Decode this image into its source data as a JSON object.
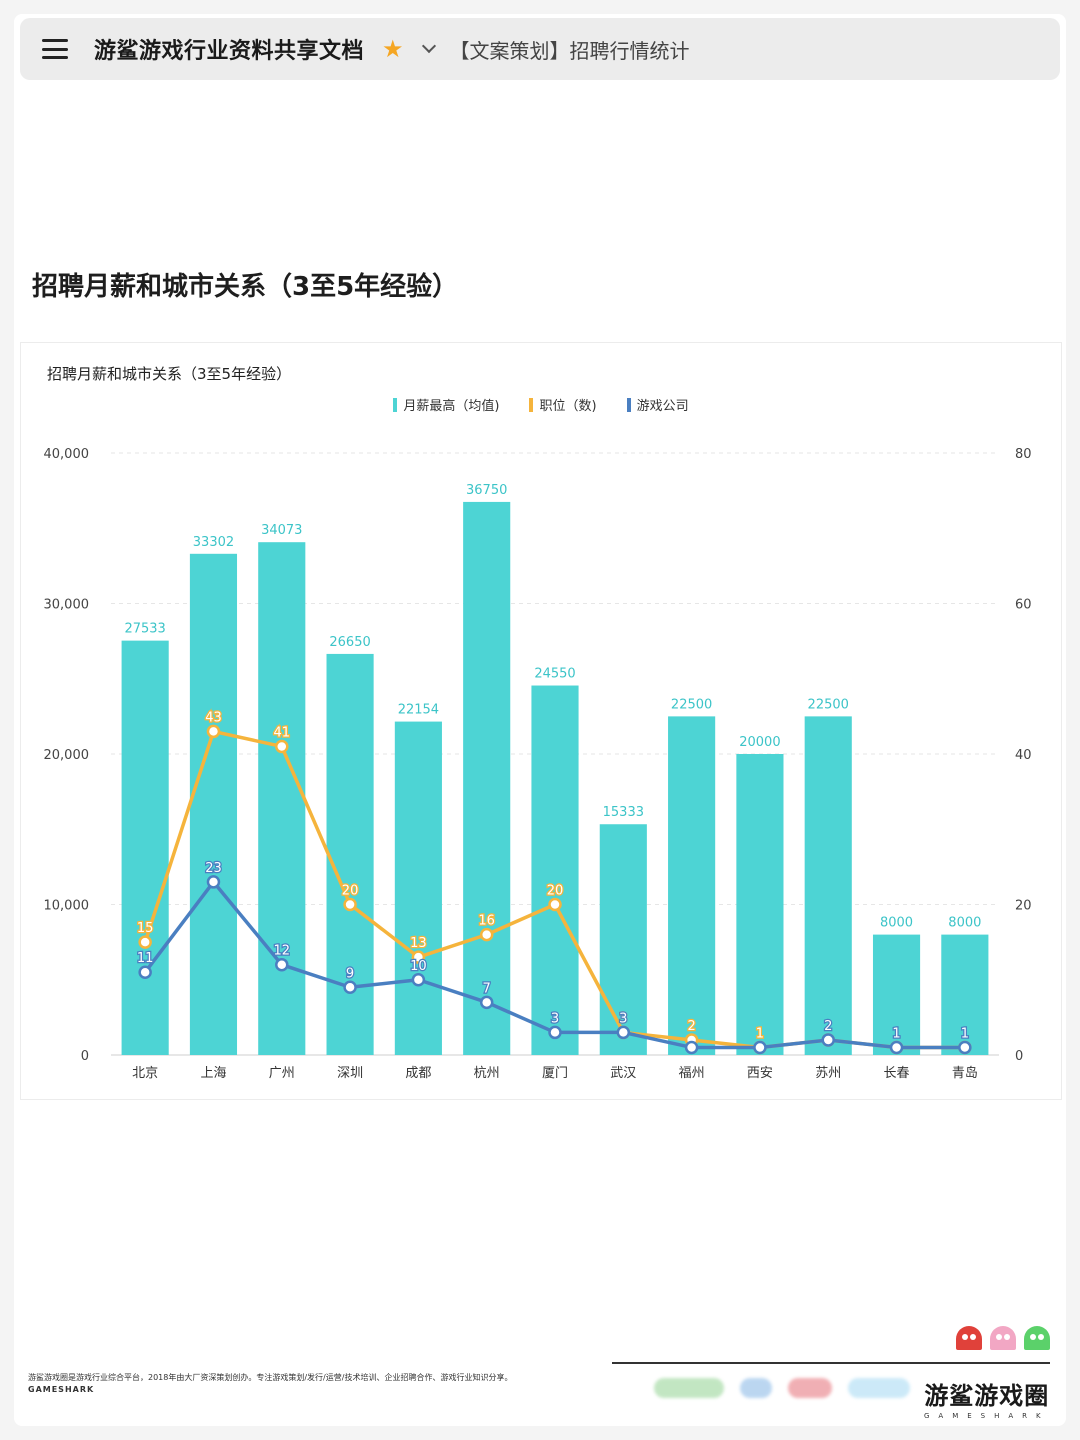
{
  "header": {
    "doc_title": "游鲨游戏行业资料共享文档",
    "sheet_tab": "【文案策划】招聘行情统计"
  },
  "section_title": "招聘月薪和城市关系（3至5年经验）",
  "colors": {
    "salary": "#4dd4d4",
    "positions": "#f5b43c",
    "companies": "#4a7fc1",
    "salary_label": "#3cc4c8"
  },
  "chart_data": {
    "type": "bar",
    "title": "招聘月薪和城市关系（3至5年经验）",
    "categories": [
      "北京",
      "上海",
      "广州",
      "深圳",
      "成都",
      "杭州",
      "厦门",
      "武汉",
      "福州",
      "西安",
      "苏州",
      "长春",
      "青岛"
    ],
    "series": [
      {
        "name": "月薪最高（均值)",
        "type": "bar",
        "axis": "left",
        "values": [
          27533,
          33302,
          34073,
          26650,
          22154,
          36750,
          24550,
          15333,
          22500,
          20000,
          22500,
          8000,
          8000
        ]
      },
      {
        "name": "职位（数)",
        "type": "line",
        "axis": "right",
        "values": [
          15,
          43,
          41,
          20,
          13,
          16,
          20,
          3,
          2,
          1,
          2,
          1,
          1
        ],
        "visible_labels": [
          "15",
          "43",
          "41",
          "20",
          "13",
          "16",
          "20",
          "3",
          "2",
          "1",
          "",
          "",
          ""
        ]
      },
      {
        "name": "游戏公司",
        "type": "line",
        "axis": "right",
        "values": [
          11,
          23,
          12,
          9,
          10,
          7,
          3,
          3,
          1,
          1,
          2,
          1,
          1
        ],
        "visible_labels": [
          "11",
          "23",
          "12",
          "9",
          "10",
          "7",
          "3",
          "3",
          "",
          "",
          "2",
          "1",
          "1"
        ]
      }
    ],
    "ylim_left": [
      0,
      40000
    ],
    "ylim_right": [
      0,
      80
    ],
    "yticks_left": [
      "0",
      "10,000",
      "20,000",
      "30,000",
      "40,000"
    ],
    "yticks_right": [
      "0",
      "20",
      "40",
      "60",
      "80"
    ],
    "grid": true,
    "legend": "top-center"
  },
  "footer": {
    "description": "游鲨游戏圈是游戏行业综合平台，2018年由大厂资深策划创办。专注游戏策划/发行/运营/技术培训、企业招聘合作、游戏行业知识分享。",
    "brand_small": "GAMESHARK",
    "brand_cn": "游鲨游戏圈",
    "brand_en": "GAMESHARK"
  }
}
